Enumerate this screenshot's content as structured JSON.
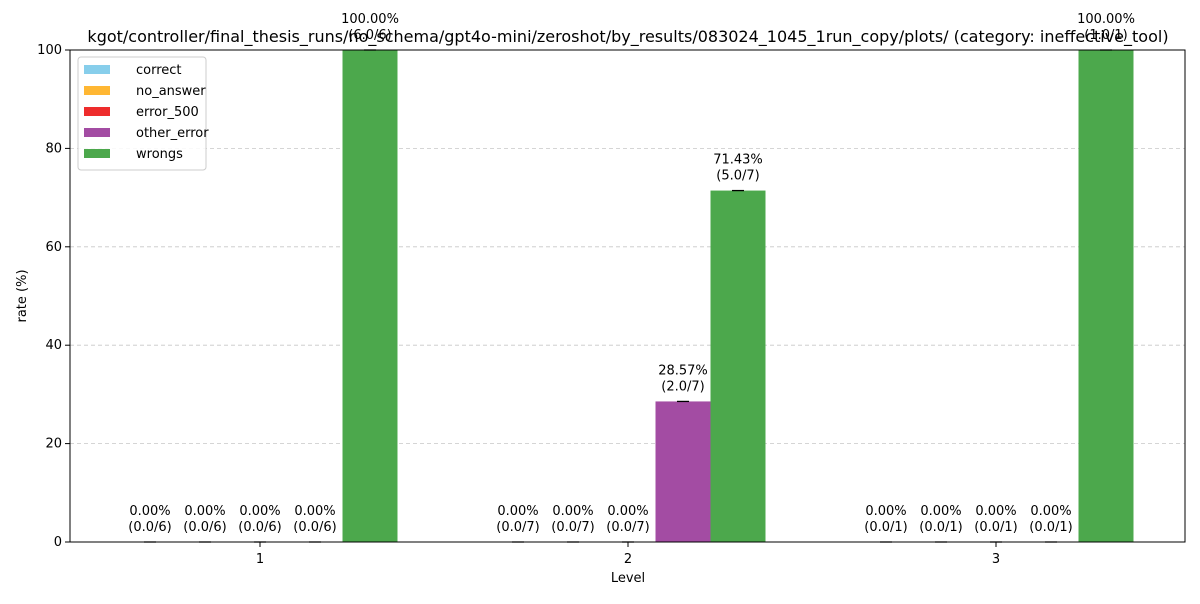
{
  "chart_data": {
    "type": "bar",
    "title": "kgot/controller/final_thesis_runs/no_schema/gpt4o-mini/zeroshot/by_results/083024_1045_1run_copy/plots/ (category: ineffective_tool)",
    "xlabel": "Level",
    "ylabel": "rate (%)",
    "ylim": [
      0,
      100
    ],
    "yticks": [
      0,
      20,
      40,
      60,
      80,
      100
    ],
    "categories": [
      "1",
      "2",
      "3"
    ],
    "grid": "y-dashed",
    "legend_position": "top-left",
    "series": [
      {
        "name": "correct",
        "color": "#87ceeb",
        "values": [
          0,
          0,
          0
        ],
        "labels": [
          "0.00%\n(0.0/6)",
          "0.00%\n(0.0/7)",
          "0.00%\n(0.0/1)"
        ]
      },
      {
        "name": "no_answer",
        "color": "#ffb733",
        "values": [
          0,
          0,
          0
        ],
        "labels": [
          "0.00%\n(0.0/6)",
          "0.00%\n(0.0/7)",
          "0.00%\n(0.0/1)"
        ]
      },
      {
        "name": "error_500",
        "color": "#ee2c2c",
        "values": [
          0,
          0,
          0
        ],
        "labels": [
          "0.00%\n(0.0/6)",
          "0.00%\n(0.0/7)",
          "0.00%\n(0.0/1)"
        ]
      },
      {
        "name": "other_error",
        "color": "#a34ca3",
        "values": [
          0,
          28.57,
          0
        ],
        "labels": [
          "0.00%\n(0.0/6)",
          "28.57%\n(2.0/7)",
          "0.00%\n(0.0/1)"
        ]
      },
      {
        "name": "wrongs",
        "color": "#4ca84c",
        "values": [
          100,
          71.43,
          100
        ],
        "labels": [
          "100.00%\n(6.0/6)",
          "71.43%\n(5.0/7)",
          "100.00%\n(1.0/1)"
        ]
      }
    ]
  }
}
